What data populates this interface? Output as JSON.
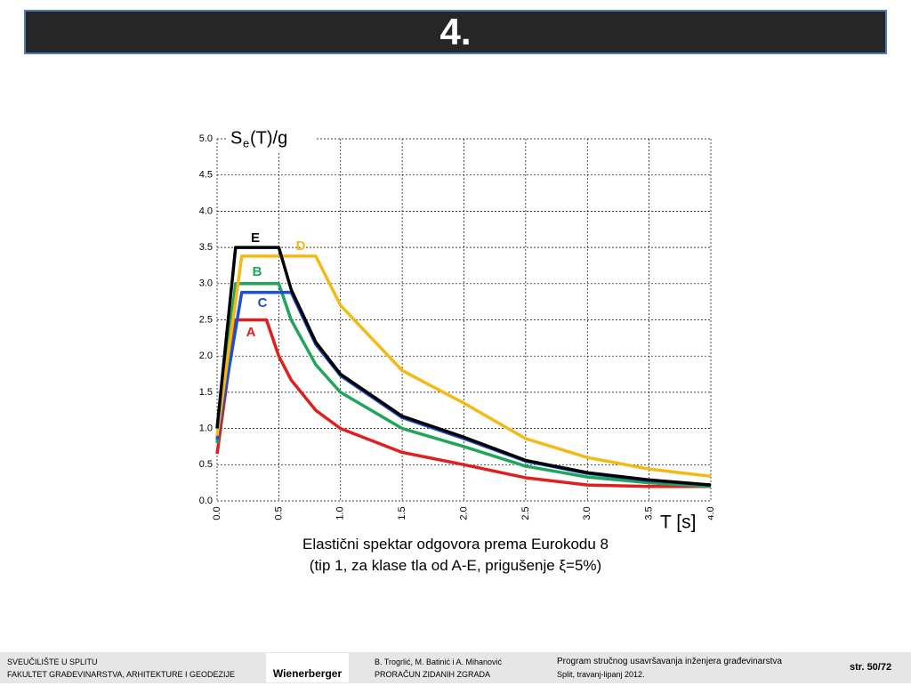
{
  "header": {
    "title": "4."
  },
  "chart_data": {
    "type": "line",
    "ylabel_parts": [
      "S",
      "e",
      "(T)/g"
    ],
    "xlabel": "T [s]",
    "x": [
      0,
      0.15,
      0.2,
      0.4,
      0.5,
      0.6,
      0.8,
      1.0,
      1.5,
      2.0,
      2.5,
      3.0,
      3.5,
      4.0
    ],
    "series": [
      {
        "name": "A",
        "color": "#e0201c",
        "values": [
          0.65,
          2.5,
          2.5,
          2.5,
          2.0,
          1.67,
          1.25,
          1.0,
          0.67,
          0.5,
          0.32,
          0.22,
          0.2,
          0.2
        ]
      },
      {
        "name": "B",
        "color": "#1fa65a",
        "values": [
          0.8,
          3.0,
          3.0,
          3.0,
          3.0,
          2.5,
          1.88,
          1.5,
          1.0,
          0.75,
          0.48,
          0.33,
          0.25,
          0.2
        ]
      },
      {
        "name": "C",
        "color": "#1d4fd2",
        "values": [
          0.85,
          2.37,
          2.88,
          2.88,
          2.88,
          2.88,
          2.16,
          1.73,
          1.15,
          0.86,
          0.55,
          0.38,
          0.28,
          0.22
        ]
      },
      {
        "name": "D",
        "color": "#f5b914",
        "values": [
          0.9,
          2.76,
          3.38,
          3.38,
          3.38,
          3.38,
          3.38,
          2.7,
          1.8,
          1.35,
          0.86,
          0.6,
          0.44,
          0.34
        ]
      },
      {
        "name": "E",
        "color": "#000000",
        "values": [
          1.0,
          3.5,
          3.5,
          3.5,
          3.5,
          2.92,
          2.19,
          1.75,
          1.17,
          0.88,
          0.56,
          0.39,
          0.29,
          0.22
        ]
      }
    ],
    "xlim": [
      0,
      4
    ],
    "ylim": [
      0,
      5
    ],
    "xticks": [
      {
        "value": 0,
        "label": "0.0"
      },
      {
        "value": 0.5,
        "label": "0.5"
      },
      {
        "value": 1,
        "label": "1.0"
      },
      {
        "value": 1.5,
        "label": "1.5"
      },
      {
        "value": 2,
        "label": "2.0"
      },
      {
        "value": 2.5,
        "label": "2.5"
      },
      {
        "value": 3,
        "label": "3.0"
      },
      {
        "value": 3.5,
        "label": "3.5"
      },
      {
        "value": 4,
        "label": "4.0"
      }
    ],
    "yticks": [
      {
        "value": 0,
        "label": "0.0"
      },
      {
        "value": 0.5,
        "label": "0.5"
      },
      {
        "value": 1,
        "label": "1.0"
      },
      {
        "value": 1.5,
        "label": "1.5"
      },
      {
        "value": 2,
        "label": "2.0"
      },
      {
        "value": 2.5,
        "label": "2.5"
      },
      {
        "value": 3,
        "label": "3.0"
      },
      {
        "value": 3.5,
        "label": "3.5"
      },
      {
        "value": 4,
        "label": "4.0"
      },
      {
        "value": 4.5,
        "label": "4.5"
      },
      {
        "value": 5,
        "label": "5.0"
      }
    ],
    "grid": true
  },
  "caption": [
    "Elastični spektar odgovora prema Eurokodu 8",
    "(tip 1, za klase tla od A-E, prigušenje ξ=5%)"
  ],
  "footer": {
    "institution": [
      "SVEUČILIŠTE U SPLITU",
      "FAKULTET GRAĐEVINARSTVA, ARHITEKTURE I GEODEZIJE"
    ],
    "logo": "Wienerberger",
    "authors": [
      "B. Trogrlić, M. Batinić i A. Mihanović",
      "PRORAČUN ZIDANIH ZGRADA"
    ],
    "program": [
      "Program stručnog usavršavanja inženjera građevinarstva",
      "Split, travanj-lipanj 2012."
    ],
    "page": "str. 50/72"
  }
}
